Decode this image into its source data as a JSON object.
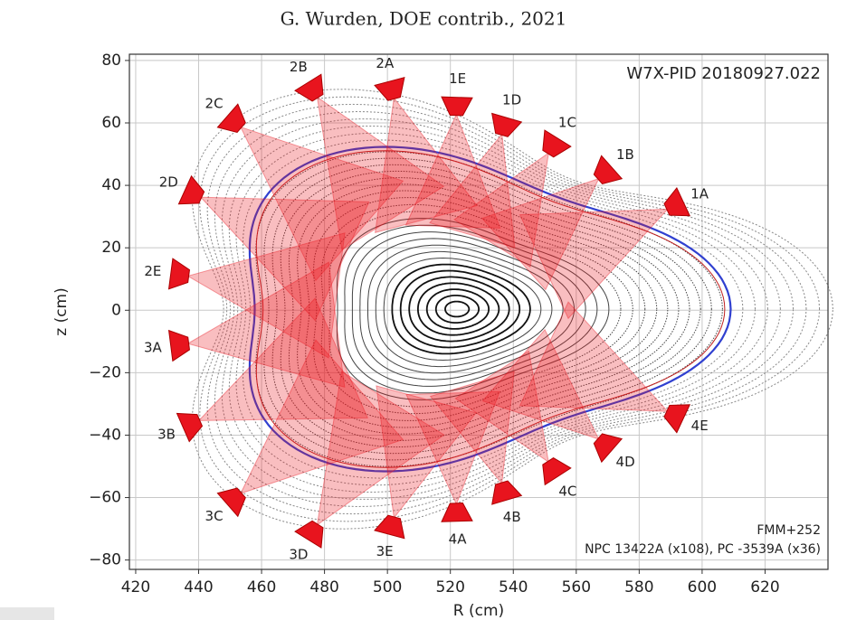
{
  "chart_data": {
    "type": "scatter",
    "title": "G. Wurden, DOE contrib., 2021",
    "xlabel": "R (cm)",
    "ylabel": "z (cm)",
    "annotations": [
      "W7X-PID 20180927.022",
      "FMM+252",
      "NPC 13422A (x108), PC -3539A (x36)"
    ],
    "xlim": [
      418,
      640
    ],
    "ylim": [
      -83,
      82
    ],
    "xticks": [
      420,
      440,
      460,
      480,
      500,
      520,
      540,
      560,
      580,
      600,
      620
    ],
    "yticks": [
      {
        "value": -80,
        "label": "−80"
      },
      {
        "value": -60,
        "label": "−60"
      },
      {
        "value": -40,
        "label": "−40"
      },
      {
        "value": -20,
        "label": "−20"
      },
      0,
      20,
      40,
      60,
      80
    ],
    "grid": true,
    "color": "#e8141e",
    "point_labels": [
      "2B",
      "2A",
      "1E",
      "1D",
      "1C",
      "1B",
      "1A",
      "2C",
      "2D",
      "2E",
      "3A",
      "3B",
      "3C",
      "3D",
      "3E",
      "4A",
      "4B",
      "4C",
      "4D",
      "4E"
    ],
    "x": [
      476.3,
      501.4,
      522,
      537.1,
      552.6,
      569.1,
      591.4,
      451.4,
      438.3,
      434,
      434,
      437.7,
      451.4,
      476.3,
      501.4,
      522,
      537.1,
      552.6,
      569.1,
      591.4
    ],
    "values": [
      70.5,
      70.5,
      65.3,
      58.9,
      52.6,
      43.9,
      33.5,
      60.4,
      37.3,
      11.3,
      -11.0,
      -36.4,
      -60.4,
      -71.0,
      -69.0,
      -64.7,
      -58.0,
      -50.8,
      -43.0,
      -33.5
    ]
  }
}
